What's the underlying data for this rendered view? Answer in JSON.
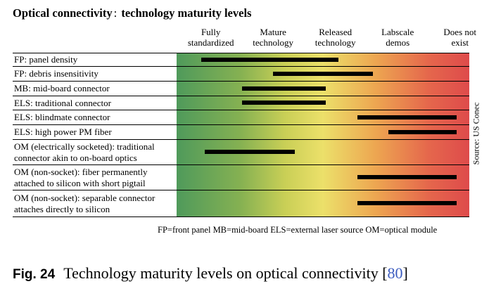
{
  "chart_data": {
    "type": "bar",
    "title": "Optical connectivity",
    "title_colon": ":",
    "subtitle": "technology maturity levels",
    "levels": [
      "Fully standardized",
      "Mature technology",
      "Released technology",
      "Labscale demos",
      "Does not exist"
    ],
    "level_lines": [
      [
        "Fully",
        "standardized"
      ],
      [
        "Mature",
        "technology"
      ],
      [
        "Released",
        "technology"
      ],
      [
        "Labscale",
        "demos"
      ],
      [
        "Does not",
        "exist"
      ]
    ],
    "x_scale": "maturity level index 0 (Fully standardized) to 4 (Does not exist)",
    "xlim": [
      -0.55,
      4.15
    ],
    "categories": [
      "FP: panel density",
      "FP: debris insensitivity",
      "MB: mid-board connector",
      "ELS: traditional connector",
      "ELS: blindmate connector",
      "ELS: high power PM fiber",
      "OM (electrically socketed): traditional connector akin to on-board optics",
      "OM (non-socket): fiber permanently attached to silicon with short pigtail",
      "OM (non-socket): separable connector attaches directly to silicon"
    ],
    "category_lines": [
      [
        "FP: panel density"
      ],
      [
        "FP: debris insensitivity"
      ],
      [
        "MB: mid-board connector"
      ],
      [
        "ELS: traditional connector"
      ],
      [
        "ELS: blindmate connector"
      ],
      [
        "ELS: high power PM fiber"
      ],
      [
        "OM (electrically socketed): traditional",
        "connector akin to on-board optics"
      ],
      [
        "OM (non-socket): fiber permanently",
        "attached to silicon with short pigtail"
      ],
      [
        "OM (non-socket): separable connector",
        "attaches directly to silicon"
      ]
    ],
    "ranges": [
      [
        -0.15,
        2.05
      ],
      [
        1.0,
        2.6
      ],
      [
        0.5,
        1.85
      ],
      [
        0.5,
        1.85
      ],
      [
        2.35,
        3.95
      ],
      [
        2.85,
        3.95
      ],
      [
        -0.1,
        1.35
      ],
      [
        2.35,
        3.95
      ],
      [
        2.35,
        3.95
      ]
    ],
    "background_colors": [
      "#4f9a5b",
      "#86b152",
      "#c9cf56",
      "#ece06a",
      "#eda651",
      "#e5674c",
      "#de4b4b"
    ],
    "bar_color": "#000000",
    "source": "Source: US Conec",
    "footnote": "FP=front panel MB=mid-board  ELS=external laser source OM=optical module"
  },
  "caption": {
    "label": "Fig. 24",
    "text": "Technology maturity levels on optical connectivity [",
    "ref": "80",
    "close": "]"
  }
}
